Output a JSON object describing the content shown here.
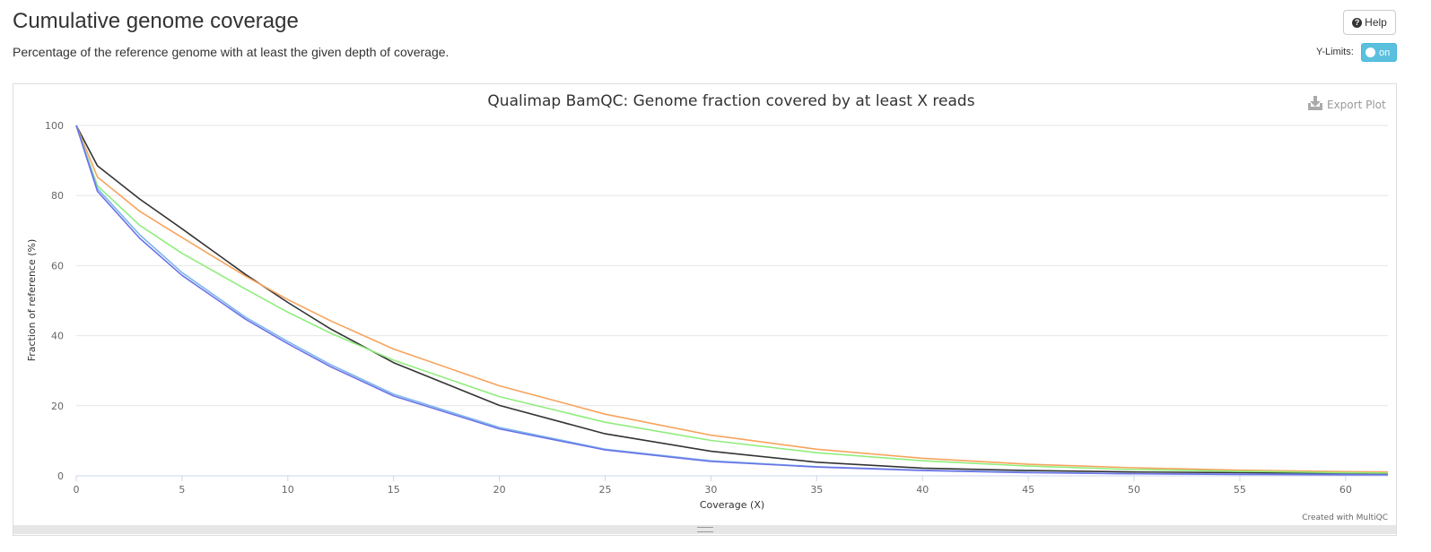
{
  "header": {
    "title": "Cumulative genome coverage",
    "description": "Percentage of the reference genome with at least the given depth of coverage.",
    "help_label": "Help",
    "help_icon": "question-circle-icon",
    "ylimits_label": "Y-Limits:",
    "ylimits_toggle": "on"
  },
  "plot": {
    "export_label": "Export Plot",
    "export_icon": "download-icon",
    "credit": "Created with MultiQC"
  },
  "chart_data": {
    "type": "line",
    "title": "Qualimap BamQC: Genome fraction covered by at least X reads",
    "xlabel": "Coverage (X)",
    "ylabel": "Fraction of reference (%)",
    "xlim": [
      0,
      62
    ],
    "ylim": [
      0,
      100
    ],
    "xticks": [
      0,
      5,
      10,
      15,
      20,
      25,
      30,
      35,
      40,
      45,
      50,
      55,
      60
    ],
    "yticks": [
      0,
      20,
      40,
      60,
      80,
      100
    ],
    "grid": true,
    "x": [
      0,
      1,
      3,
      5,
      8,
      10,
      12,
      15,
      20,
      25,
      30,
      35,
      40,
      45,
      50,
      55,
      60,
      62
    ],
    "series": [
      {
        "color": "#333333",
        "values": [
          100,
          88.5,
          79,
          70.5,
          57.5,
          49.5,
          42,
          32.3,
          20.1,
          12,
          7,
          3.9,
          2.2,
          1.5,
          1.1,
          0.9,
          0.7,
          0.6
        ]
      },
      {
        "color": "#f7a35c",
        "values": [
          100,
          85.3,
          75.5,
          68,
          57,
          50.3,
          44.3,
          36.2,
          25.7,
          17.6,
          11.6,
          7.6,
          5,
          3.3,
          2.3,
          1.6,
          1.2,
          1.1
        ]
      },
      {
        "color": "#90ed7d",
        "values": [
          100,
          82.8,
          71.5,
          63.5,
          53.3,
          46.7,
          40.8,
          33,
          22.6,
          15.3,
          10.1,
          6.6,
          4.3,
          2.8,
          1.8,
          1.3,
          0.9,
          0.8
        ]
      },
      {
        "color": "#7cb5ec",
        "values": [
          100,
          82,
          68.8,
          58,
          45.3,
          38.3,
          31.8,
          23.3,
          13.8,
          7.6,
          4.3,
          2.6,
          1.6,
          1,
          0.6,
          0.5,
          0.4,
          0.3
        ]
      },
      {
        "color": "#6b72e6",
        "values": [
          100,
          81.2,
          67.8,
          57.2,
          44.7,
          37.7,
          31.2,
          22.8,
          13.4,
          7.4,
          4.1,
          2.5,
          1.5,
          0.9,
          0.6,
          0.4,
          0.3,
          0.3
        ]
      }
    ]
  }
}
